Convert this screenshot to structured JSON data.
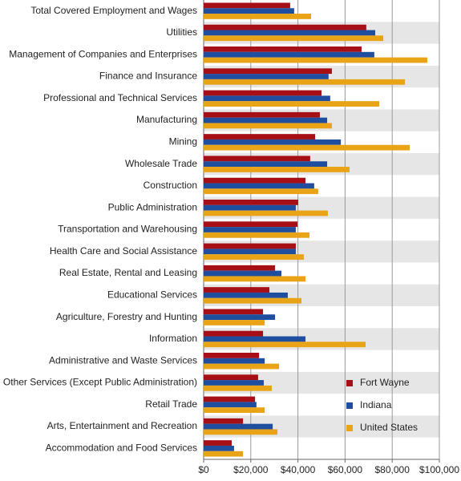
{
  "chart_data": {
    "type": "bar",
    "orientation": "horizontal",
    "categories": [
      "Total Covered Employment and Wages",
      "Utilities",
      "Management of Companies and Enterprises",
      "Finance and Insurance",
      "Professional and Technical Services",
      "Manufacturing",
      "Mining",
      "Wholesale Trade",
      "Construction",
      "Public Administration",
      "Transportation and Warehousing",
      "Health Care and Social Assistance",
      "Real Estate, Rental and Leasing",
      "Educational Services",
      "Agriculture, Forestry and Hunting",
      "Information",
      "Administrative and Waste Services",
      "Other Services (Except Public Administration)",
      "Retail Trade",
      "Arts, Entertainment and Recreation",
      "Accommodation and Food Services"
    ],
    "series": [
      {
        "name": "Fort Wayne",
        "color": "#a50f15",
        "values": [
          36700,
          69000,
          67000,
          54400,
          50000,
          49300,
          47300,
          45200,
          43200,
          40100,
          39800,
          39100,
          30300,
          27900,
          25200,
          25200,
          23500,
          23100,
          21800,
          16700,
          11900
        ]
      },
      {
        "name": "Indiana",
        "color": "#1f4e9e",
        "values": [
          38400,
          72800,
          72400,
          53000,
          53700,
          52400,
          58200,
          52400,
          46900,
          39100,
          39100,
          39100,
          33000,
          35700,
          30300,
          43200,
          25900,
          25500,
          22400,
          29300,
          12900
        ]
      },
      {
        "name": "United States",
        "color": "#e8a317",
        "values": [
          45600,
          76200,
          94900,
          85400,
          74500,
          54400,
          87400,
          61900,
          48600,
          52700,
          44900,
          42500,
          43200,
          41500,
          25900,
          68700,
          32000,
          28900,
          25900,
          31300,
          16700
        ]
      }
    ],
    "xlim": [
      0,
      100000
    ],
    "xticks": [
      {
        "value": 0,
        "label": "$0"
      },
      {
        "value": 20000,
        "label": "$20,000"
      },
      {
        "value": 40000,
        "label": "$40,000"
      },
      {
        "value": 60000,
        "label": "$60,000"
      },
      {
        "value": 80000,
        "label": "$80,000"
      },
      {
        "value": 100000,
        "label": "$100,000"
      }
    ],
    "grid": true,
    "legend": "lower right"
  }
}
